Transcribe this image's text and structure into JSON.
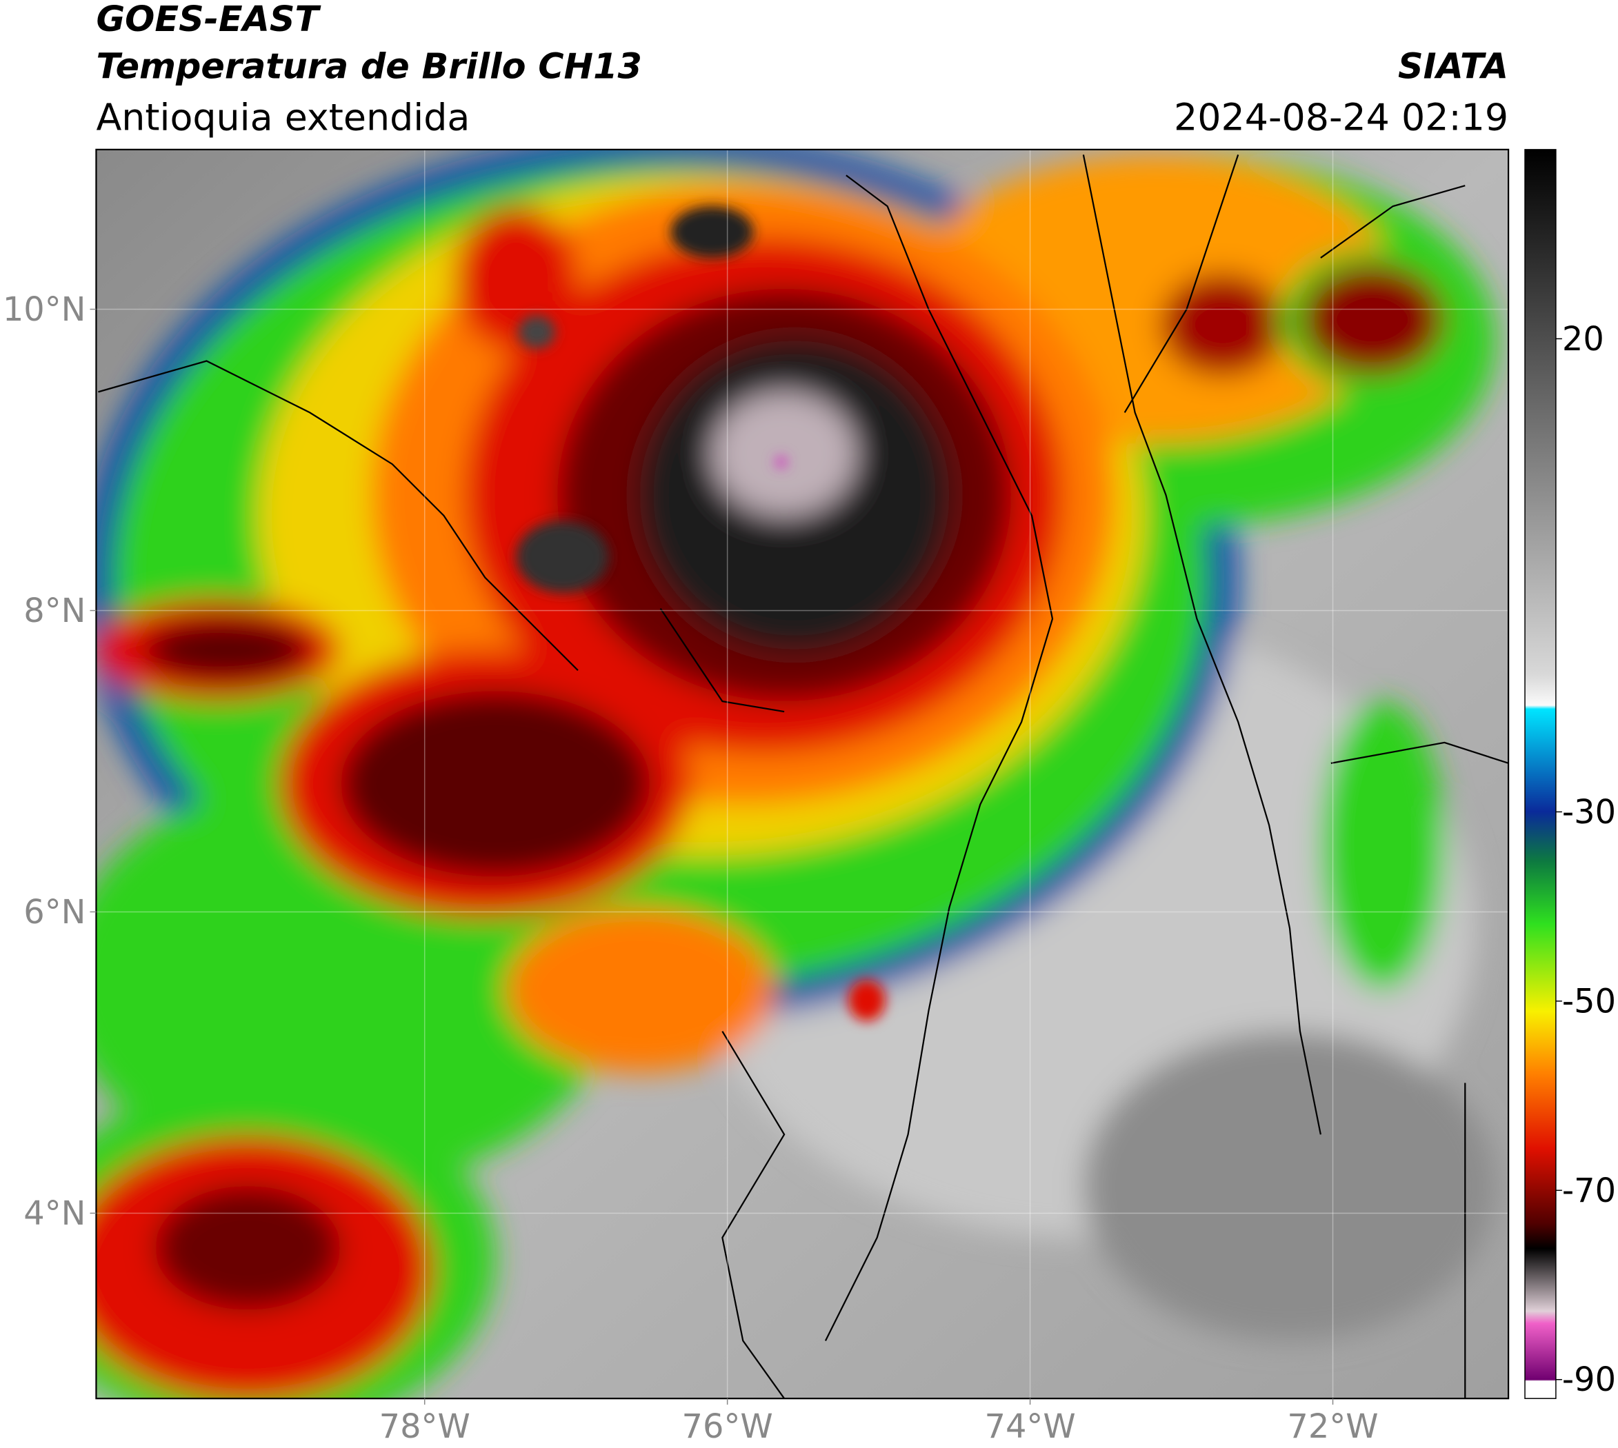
{
  "chart_data": {
    "type": "map",
    "title": "GOES-EAST",
    "subtitle": "Temperatura de Brillo CH13",
    "region": "Antioquia extendida",
    "source": "SIATA",
    "datetime": "2024-08-24 02:19",
    "xlim": [
      -80.17,
      -70.84
    ],
    "ylim": [
      2.77,
      11.06
    ],
    "xticks": [
      {
        "value": -78,
        "label": "78°W"
      },
      {
        "value": -76,
        "label": "76°W"
      },
      {
        "value": -74,
        "label": "74°W"
      },
      {
        "value": -72,
        "label": "72°W"
      }
    ],
    "yticks": [
      {
        "value": 4,
        "label": "4°N"
      },
      {
        "value": 6,
        "label": "6°N"
      },
      {
        "value": 8,
        "label": "8°N"
      },
      {
        "value": 10,
        "label": "10°N"
      }
    ],
    "grid": true,
    "colorbar": {
      "lim": [
        -92,
        40
      ],
      "ticks": [
        20,
        -30,
        -50,
        -70,
        -90
      ]
    }
  }
}
